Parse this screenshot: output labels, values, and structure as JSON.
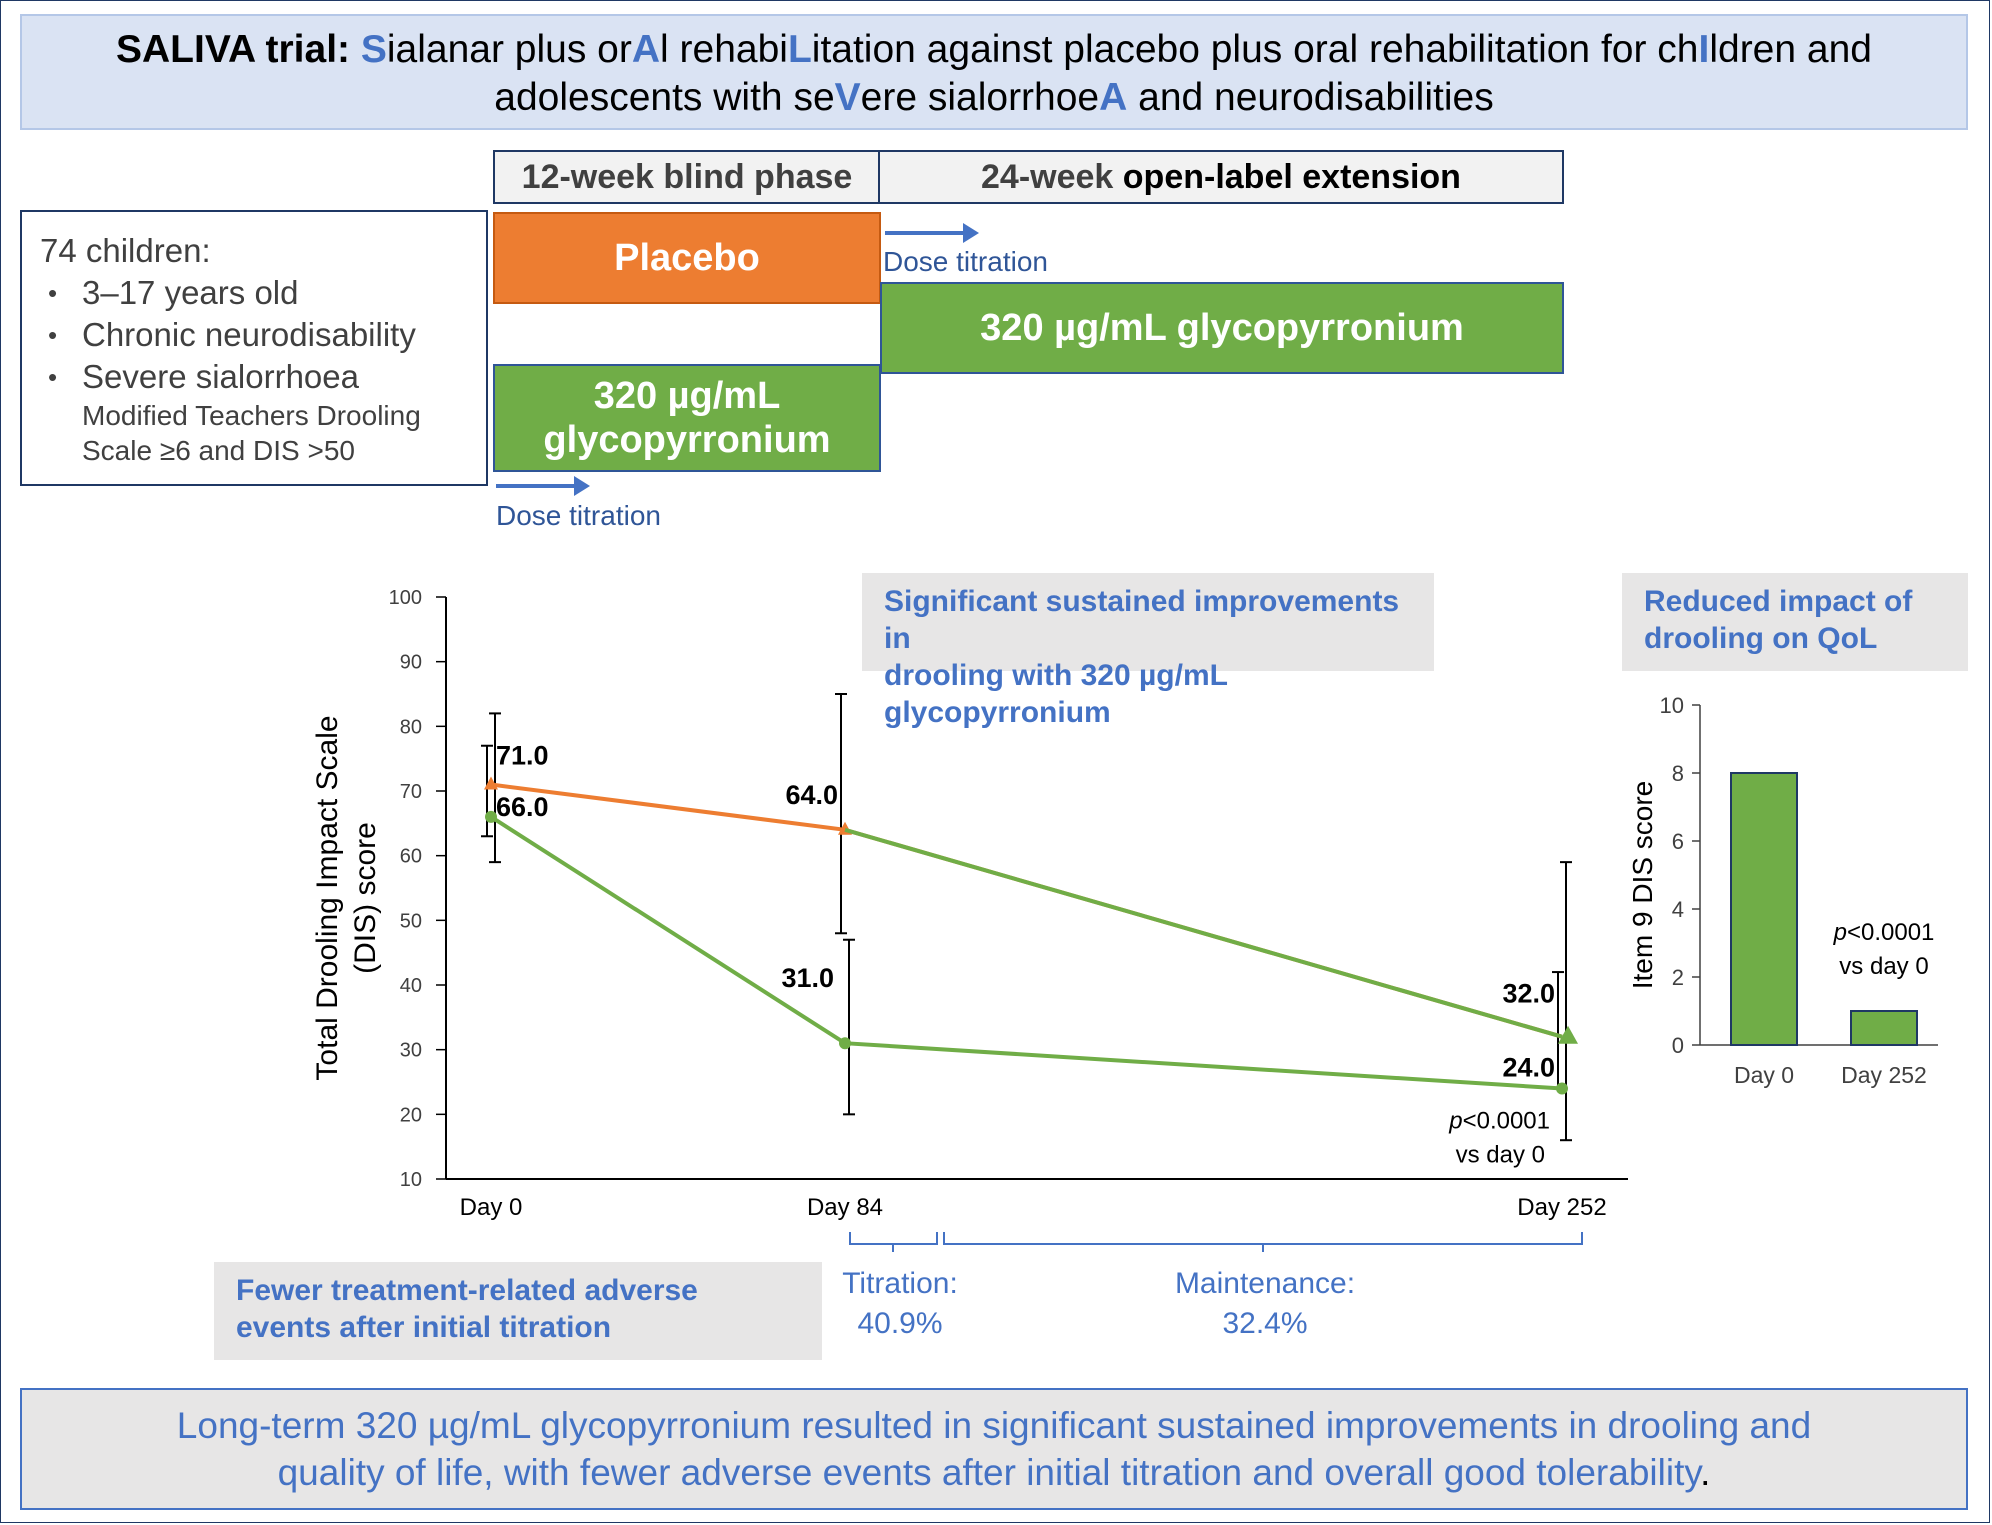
{
  "title": {
    "label": "SALIVA trial:",
    "parts": [
      {
        "t": "S",
        "hl": true
      },
      {
        "t": "ialanar plus or",
        "hl": false
      },
      {
        "t": "A",
        "hl": true
      },
      {
        "t": "l rehabi",
        "hl": false
      },
      {
        "t": "L",
        "hl": true
      },
      {
        "t": "itation against placebo plus oral rehabilitation for ch",
        "hl": false
      },
      {
        "t": "I",
        "hl": true
      },
      {
        "t": "ldren and adolescents with se",
        "hl": false
      },
      {
        "t": "V",
        "hl": true
      },
      {
        "t": "ere sialorrhoe",
        "hl": false
      },
      {
        "t": "A",
        "hl": true
      },
      {
        "t": " and neurodisabilities",
        "hl": false
      }
    ]
  },
  "phases": {
    "blind_bold": "12-week blind phase",
    "ext_prefix": "24-week ",
    "ext_bold": "open-label extension"
  },
  "population": {
    "head": "74 children:",
    "bullets": [
      "3–17 years old",
      "Chronic neurodisability",
      "Severe sialorrhoea"
    ],
    "sub_line1": "Modified Teachers Drooling",
    "sub_line2": "Scale ≥6 and DIS >50"
  },
  "arms": {
    "placebo": "Placebo",
    "drug_line1": "320 µg/mL",
    "drug_line2": "glycopyrronium",
    "ext_drug": "320 µg/mL glycopyrronium"
  },
  "dose_titration": "Dose titration",
  "headlines": {
    "drooling_line1": "Significant sustained improvements in",
    "drooling_line2": "drooling with 320 µg/mL glycopyrronium",
    "qol_line1": "Reduced impact of",
    "qol_line2": "drooling on QoL",
    "ae_line1": "Fewer treatment-related adverse",
    "ae_line2": "events after initial titration"
  },
  "adverse_events": {
    "titration_label": "Titration:",
    "titration_value": "40.9%",
    "maintenance_label": "Maintenance:",
    "maintenance_value": "32.4%"
  },
  "conclusion": {
    "line1": "Long-term 320 µg/mL glycopyrronium resulted in significant sustained improvements in drooling and",
    "line2": "quality of life, with fewer adverse events after initial titration and overall good tolerability",
    "period": "."
  },
  "colors": {
    "orange": "#ed7d31",
    "green": "#70ad47",
    "blue": "#4472c4",
    "navy": "#1f3864"
  },
  "chart_data": [
    {
      "type": "line",
      "ylabel_line1": "Total Drooling Impact Scale",
      "ylabel_line2": "(DIS) score",
      "categories": [
        "Day 0",
        "Day 84",
        "Day 252"
      ],
      "x": [
        0,
        84,
        252
      ],
      "ylim": [
        10,
        100
      ],
      "yticks": [
        10,
        20,
        30,
        40,
        50,
        60,
        70,
        80,
        90,
        100
      ],
      "series": [
        {
          "color": "#ed7d31",
          "values": [
            71.0,
            64.0,
            32.0
          ],
          "error_low": [
            63,
            48,
            24
          ],
          "error_high": [
            77,
            85,
            42
          ]
        },
        {
          "color": "#70ad47",
          "values": [
            66.0,
            31.0,
            24.0
          ],
          "error_low": [
            59,
            20,
            16
          ],
          "error_high": [
            82,
            47,
            59
          ]
        }
      ],
      "data_labels": [
        "71.0",
        "64.0",
        "32.0",
        "66.0",
        "31.0",
        "24.0"
      ],
      "p_value": {
        "p": "p",
        "rest": "<0.0001",
        "line2": "vs day 0"
      }
    },
    {
      "type": "bar",
      "ylabel": "Item 9 DIS score",
      "categories": [
        "Day 0",
        "Day 252"
      ],
      "values": [
        8,
        1
      ],
      "ylim": [
        0,
        10
      ],
      "yticks": [
        0,
        2,
        4,
        6,
        8,
        10
      ],
      "color": "#70ad47",
      "p_value": {
        "p": "p",
        "rest": "<0.0001",
        "line2": "vs day 0"
      }
    }
  ]
}
